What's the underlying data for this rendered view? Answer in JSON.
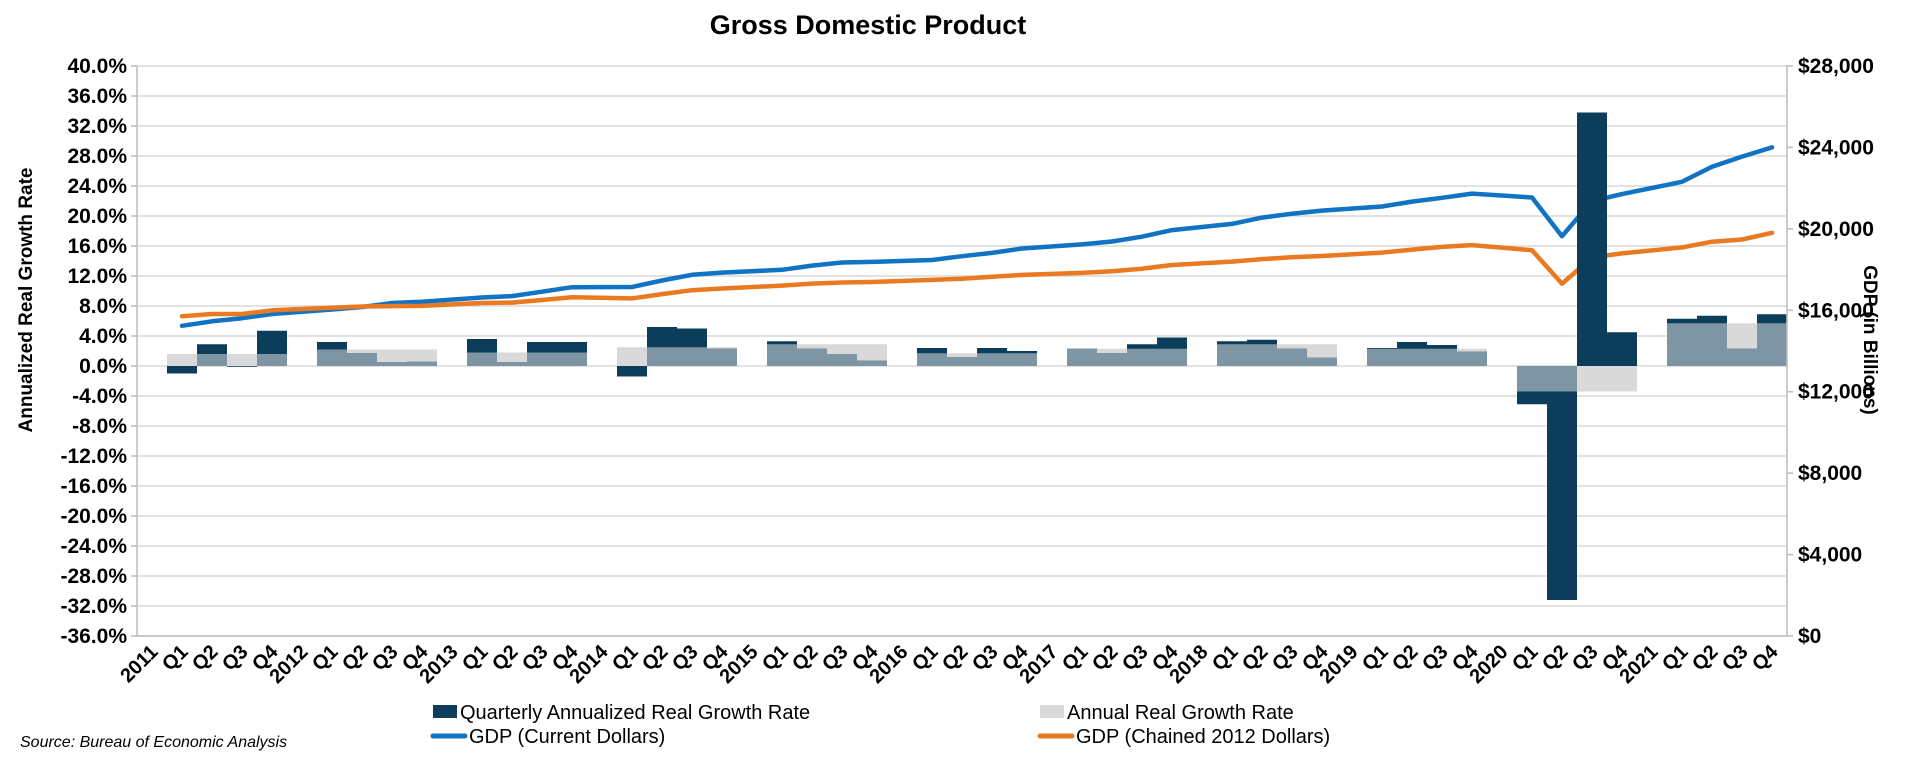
{
  "title": "Gross Domestic Product",
  "source_note": "Source: Bureau of Economic Analysis",
  "left_axis": {
    "title": "Annualized Real Growth Rate",
    "min": -36,
    "max": 40,
    "step": 4,
    "ticks": [
      "40.0%",
      "36.0%",
      "32.0%",
      "28.0%",
      "24.0%",
      "20.0%",
      "16.0%",
      "12.0%",
      "8.0%",
      "4.0%",
      "0.0%",
      "-4.0%",
      "-8.0%",
      "-12.0%",
      "-16.0%",
      "-20.0%",
      "-24.0%",
      "-28.0%",
      "-32.0%",
      "-36.0%"
    ]
  },
  "right_axis": {
    "title": "GDP (in Billions)",
    "min": 0,
    "max": 28000,
    "step": 4000,
    "ticks": [
      "$28,000",
      "$24,000",
      "$20,000",
      "$16,000",
      "$12,000",
      "$8,000",
      "$4,000",
      "$0"
    ]
  },
  "legend": [
    {
      "label": "Quarterly Annualized Real Growth Rate",
      "marker": "square",
      "color": "#0c3e5c"
    },
    {
      "label": "Annual Real Growth Rate",
      "marker": "square",
      "color": "#d9d9d9"
    },
    {
      "label": "GDP (Current Dollars)",
      "marker": "line",
      "color": "#1173c4"
    },
    {
      "label": "GDP (Chained 2012 Dollars)",
      "marker": "line",
      "color": "#ea7a22"
    }
  ],
  "chart_data": {
    "type": "combo-bar-line",
    "grid": "horizontal",
    "bar_overlap_color": "#7e95a3",
    "gridline_color": "#d9d9d9",
    "axis_line_color": "#bfbfbf",
    "left_ylim": [
      -36,
      40
    ],
    "right_ylim": [
      0,
      28000
    ],
    "x_slot_labels": [
      "2011",
      "Q1",
      "Q2",
      "Q3",
      "Q4",
      "2012",
      "Q1",
      "Q2",
      "Q3",
      "Q4",
      "2013",
      "Q1",
      "Q2",
      "Q3",
      "Q4",
      "2014",
      "Q1",
      "Q2",
      "Q3",
      "Q4",
      "2015",
      "Q1",
      "Q2",
      "Q3",
      "Q4",
      "2016",
      "Q1",
      "Q2",
      "Q3",
      "Q4",
      "2017",
      "Q1",
      "Q2",
      "Q3",
      "Q4",
      "2018",
      "Q1",
      "Q2",
      "Q3",
      "Q4",
      "2019",
      "Q1",
      "Q2",
      "Q3",
      "Q4",
      "2020",
      "Q1",
      "Q2",
      "Q3",
      "Q4",
      "2021",
      "Q1",
      "Q2",
      "Q3",
      "Q4"
    ],
    "years": [
      2011,
      2012,
      2013,
      2014,
      2015,
      2016,
      2017,
      2018,
      2019,
      2020,
      2021
    ],
    "series": [
      {
        "name": "Quarterly Annualized Real Growth Rate",
        "type": "bar",
        "axis": "left",
        "unit": "percent",
        "color": "#0c3e5c",
        "values": [
          -1.0,
          2.9,
          -0.1,
          4.7,
          3.2,
          1.7,
          0.5,
          0.6,
          3.6,
          0.5,
          3.2,
          3.2,
          -1.4,
          5.2,
          5.0,
          2.3,
          3.3,
          2.3,
          1.6,
          0.7,
          2.4,
          1.2,
          2.4,
          2.0,
          2.3,
          1.7,
          2.9,
          3.8,
          3.3,
          3.5,
          2.3,
          1.1,
          2.4,
          3.2,
          2.8,
          1.9,
          -5.1,
          -31.2,
          33.8,
          4.5,
          6.3,
          6.7,
          2.3,
          6.9
        ]
      },
      {
        "name": "Annual Real Growth Rate",
        "type": "bar",
        "axis": "left",
        "unit": "percent",
        "color": "#d9d9d9",
        "values_by_year": [
          1.6,
          2.2,
          1.8,
          2.5,
          2.9,
          1.7,
          2.3,
          2.9,
          2.3,
          -3.4,
          5.7
        ]
      },
      {
        "name": "GDP (Current Dollars)",
        "type": "line",
        "axis": "right",
        "unit": "billions_usd",
        "color": "#1173c4",
        "values": [
          15238,
          15461,
          15612,
          15818,
          16041,
          16160,
          16356,
          16420,
          16630,
          16699,
          16912,
          17133,
          17144,
          17462,
          17743,
          17852,
          17991,
          18193,
          18347,
          18378,
          18470,
          18656,
          18821,
          19033,
          19237,
          19379,
          19617,
          19938,
          20243,
          20552,
          20743,
          20898,
          21098,
          21340,
          21526,
          21730,
          21538,
          19637,
          21362,
          21705,
          22313,
          23046,
          23550,
          24003
        ]
      },
      {
        "name": "GDP (Chained 2012 Dollars)",
        "type": "line",
        "axis": "right",
        "unit": "billions_usd",
        "color": "#ea7a22",
        "values": [
          15706,
          15820,
          15816,
          15997,
          16120,
          16188,
          16207,
          16213,
          16357,
          16377,
          16506,
          16638,
          16582,
          16793,
          16987,
          17072,
          17211,
          17310,
          17366,
          17391,
          17494,
          17547,
          17651,
          17736,
          17838,
          17913,
          18042,
          18224,
          18392,
          18512,
          18609,
          18667,
          18834,
          18982,
          19112,
          19202,
          18952,
          17303,
          18597,
          18794,
          19088,
          19368,
          19479,
          19806
        ]
      }
    ]
  }
}
